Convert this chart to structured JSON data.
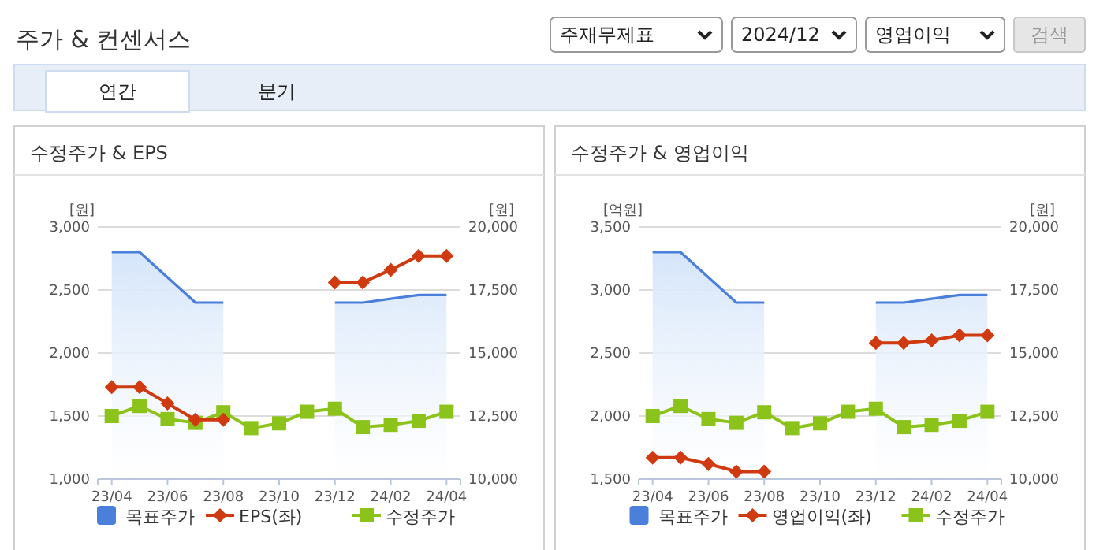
{
  "chart_data": [
    {
      "type": "line",
      "title": "수정주가 & EPS",
      "ylabel": "[원]",
      "y2label": "[원]",
      "annotations": [
        "주가 & 컨센서스",
        "주재무제표",
        "2024/12",
        "영업이익",
        "검색",
        "연간",
        "분기"
      ],
      "categories": [
        "23/04",
        null,
        "23/06",
        null,
        "23/08",
        null,
        "23/10",
        null,
        "23/12",
        null,
        "24/02",
        null,
        "24/04"
      ],
      "ylim": [
        1000,
        3000
      ],
      "yticks": [
        {
          "value": 1000,
          "label": "1,000"
        },
        {
          "value": 1500,
          "label": "1,500"
        },
        {
          "value": 2000,
          "label": "2,000"
        },
        {
          "value": 2500,
          "label": "2,500"
        },
        {
          "value": 3000,
          "label": "3,000"
        }
      ],
      "y2lim": [
        10000,
        20000
      ],
      "y2ticks": [
        {
          "value": 10000,
          "label": "10,000"
        },
        {
          "value": 12500,
          "label": "12,500"
        },
        {
          "value": 15000,
          "label": "15,000"
        },
        {
          "value": 17500,
          "label": "17,500"
        },
        {
          "value": 20000,
          "label": "20,000"
        }
      ],
      "grid": "y",
      "legend": "bottom",
      "series": [
        {
          "name": "목표주가",
          "type": "area",
          "axis": "y2",
          "color": "#4a7fdb",
          "values": [
            19000,
            19000,
            18000,
            17000,
            17000,
            null,
            null,
            null,
            17000,
            17000,
            17150,
            17300,
            17300
          ]
        },
        {
          "name": "EPS(좌)",
          "axis": "y",
          "color": "#d03a10",
          "marker": "diamond",
          "values": [
            1730,
            1730,
            1600,
            1470,
            1470,
            null,
            null,
            null,
            2560,
            2560,
            2660,
            2770,
            2770
          ]
        },
        {
          "name": "수정주가",
          "axis": "y2",
          "color": "#8cc31a",
          "marker": "square",
          "values": [
            12500,
            12900,
            12380,
            12230,
            12650,
            12020,
            12210,
            12670,
            12790,
            12060,
            12150,
            12310,
            12670
          ]
        }
      ]
    },
    {
      "type": "line",
      "title": "수정주가 & 영업이익",
      "ylabel": "[억원]",
      "y2label": "[원]",
      "categories": [
        "23/04",
        null,
        "23/06",
        null,
        "23/08",
        null,
        "23/10",
        null,
        "23/12",
        null,
        "24/02",
        null,
        "24/04"
      ],
      "ylim": [
        1500,
        3500
      ],
      "yticks": [
        {
          "value": 1500,
          "label": "1,500"
        },
        {
          "value": 2000,
          "label": "2,000"
        },
        {
          "value": 2500,
          "label": "2,500"
        },
        {
          "value": 3000,
          "label": "3,000"
        },
        {
          "value": 3500,
          "label": "3,500"
        }
      ],
      "y2lim": [
        10000,
        20000
      ],
      "y2ticks": [
        {
          "value": 10000,
          "label": "10,000"
        },
        {
          "value": 12500,
          "label": "12,500"
        },
        {
          "value": 15000,
          "label": "15,000"
        },
        {
          "value": 17500,
          "label": "17,500"
        },
        {
          "value": 20000,
          "label": "20,000"
        }
      ],
      "grid": "y",
      "legend": "bottom",
      "series": [
        {
          "name": "목표주가",
          "type": "area",
          "axis": "y2",
          "color": "#4a7fdb",
          "values": [
            19000,
            19000,
            18000,
            17000,
            17000,
            null,
            null,
            null,
            17000,
            17000,
            17150,
            17300,
            17300
          ]
        },
        {
          "name": "영업이익(좌)",
          "axis": "y",
          "color": "#d03a10",
          "marker": "diamond",
          "values": [
            1670,
            1670,
            1620,
            1560,
            1560,
            null,
            null,
            null,
            2580,
            2580,
            2600,
            2640,
            2640
          ]
        },
        {
          "name": "수정주가",
          "axis": "y2",
          "color": "#8cc31a",
          "marker": "square",
          "values": [
            12500,
            12900,
            12380,
            12230,
            12650,
            12020,
            12210,
            12670,
            12790,
            12060,
            12150,
            12310,
            12670
          ]
        }
      ]
    }
  ]
}
